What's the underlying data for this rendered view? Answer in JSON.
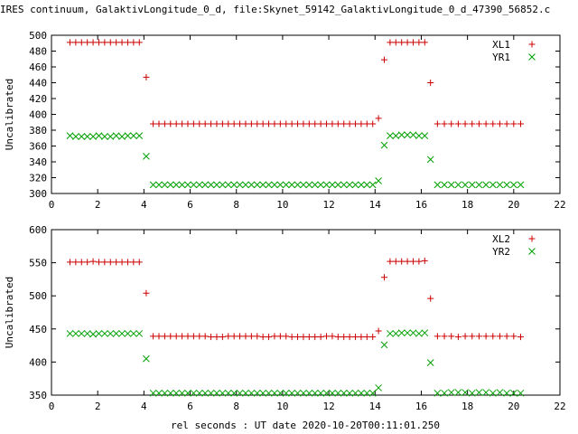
{
  "title": "IRES continuum, GalaktivLongitude_0_d, file:Skynet_59142_GalaktivLongitude_0_d_47390_56852.c",
  "xlabel": "rel seconds : UT date 2020-10-20T00:11:01.250",
  "colors": {
    "red": "#cc0000",
    "green": "#00a000"
  },
  "chart_data": [
    {
      "type": "scatter",
      "ylabel": "Uncalibrated",
      "xlim": [
        0,
        22
      ],
      "ylim": [
        300,
        500
      ],
      "xticks": [
        "0",
        "2",
        "4",
        "6",
        "8",
        "10",
        "12",
        "14",
        "16",
        "18",
        "20",
        "22"
      ],
      "yticks": [
        "300",
        "320",
        "340",
        "360",
        "380",
        "400",
        "420",
        "440",
        "460",
        "480",
        "500"
      ],
      "legend_position": "top-right",
      "series": [
        {
          "name": "XL1",
          "marker": "plus",
          "color": "#cc0000",
          "x": [
            0.8,
            1.05,
            1.3,
            1.55,
            1.8,
            2.05,
            2.3,
            2.55,
            2.8,
            3.05,
            3.3,
            3.55,
            3.8,
            4.1,
            4.4,
            4.65,
            4.9,
            5.15,
            5.4,
            5.65,
            5.9,
            6.15,
            6.4,
            6.65,
            6.9,
            7.15,
            7.4,
            7.65,
            7.9,
            8.15,
            8.4,
            8.65,
            8.9,
            9.15,
            9.4,
            9.65,
            9.9,
            10.15,
            10.4,
            10.65,
            10.9,
            11.15,
            11.4,
            11.65,
            11.9,
            12.15,
            12.4,
            12.65,
            12.9,
            13.15,
            13.4,
            13.65,
            13.9,
            14.15,
            14.4,
            14.65,
            14.9,
            15.15,
            15.4,
            15.65,
            15.9,
            16.15,
            16.4,
            16.7,
            17.0,
            17.3,
            17.6,
            17.9,
            18.2,
            18.5,
            18.8,
            19.1,
            19.4,
            19.7,
            20.0,
            20.3
          ],
          "y": [
            491,
            491,
            491,
            491,
            491,
            491,
            491,
            491,
            491,
            491,
            491,
            491,
            491,
            447,
            388,
            388,
            388,
            388,
            388,
            388,
            388,
            388,
            388,
            388,
            388,
            388,
            388,
            388,
            388,
            388,
            388,
            388,
            388,
            388,
            388,
            388,
            388,
            388,
            388,
            388,
            388,
            388,
            388,
            388,
            388,
            388,
            388,
            388,
            388,
            388,
            388,
            388,
            388,
            395,
            469,
            491,
            491,
            491,
            491,
            491,
            491,
            491,
            440,
            388,
            388,
            388,
            388,
            388,
            388,
            388,
            388,
            388,
            388,
            388,
            388,
            388
          ]
        },
        {
          "name": "YR1",
          "marker": "cross",
          "color": "#00a000",
          "x": [
            0.8,
            1.05,
            1.3,
            1.55,
            1.8,
            2.05,
            2.3,
            2.55,
            2.8,
            3.05,
            3.3,
            3.55,
            3.8,
            4.1,
            4.4,
            4.65,
            4.9,
            5.15,
            5.4,
            5.65,
            5.9,
            6.15,
            6.4,
            6.65,
            6.9,
            7.15,
            7.4,
            7.65,
            7.9,
            8.15,
            8.4,
            8.65,
            8.9,
            9.15,
            9.4,
            9.65,
            9.9,
            10.15,
            10.4,
            10.65,
            10.9,
            11.15,
            11.4,
            11.65,
            11.9,
            12.15,
            12.4,
            12.65,
            12.9,
            13.15,
            13.4,
            13.65,
            13.9,
            14.15,
            14.4,
            14.65,
            14.9,
            15.15,
            15.4,
            15.65,
            15.9,
            16.15,
            16.4,
            16.7,
            17.0,
            17.3,
            17.6,
            17.9,
            18.2,
            18.5,
            18.8,
            19.1,
            19.4,
            19.7,
            20.0,
            20.3
          ],
          "y": [
            373,
            372,
            372,
            372,
            372,
            373,
            372,
            372,
            373,
            372,
            373,
            373,
            373,
            347,
            311,
            311,
            311,
            311,
            311,
            311,
            311,
            311,
            311,
            311,
            311,
            311,
            311,
            311,
            311,
            311,
            311,
            311,
            311,
            311,
            311,
            311,
            311,
            311,
            311,
            311,
            311,
            311,
            311,
            311,
            311,
            311,
            311,
            311,
            311,
            311,
            311,
            311,
            311,
            316,
            361,
            373,
            373,
            374,
            374,
            374,
            373,
            373,
            343,
            311,
            311,
            311,
            311,
            311,
            311,
            311,
            311,
            311,
            311,
            311,
            311,
            311
          ]
        }
      ]
    },
    {
      "type": "scatter",
      "ylabel": "Uncalibrated",
      "xlim": [
        0,
        22
      ],
      "ylim": [
        350,
        600
      ],
      "xticks": [
        "0",
        "2",
        "4",
        "6",
        "8",
        "10",
        "12",
        "14",
        "16",
        "18",
        "20",
        "22"
      ],
      "yticks": [
        "350",
        "400",
        "450",
        "500",
        "550",
        "600"
      ],
      "legend_position": "top-right",
      "series": [
        {
          "name": "XL2",
          "marker": "plus",
          "color": "#cc0000",
          "x": [
            0.8,
            1.05,
            1.3,
            1.55,
            1.8,
            2.05,
            2.3,
            2.55,
            2.8,
            3.05,
            3.3,
            3.55,
            3.8,
            4.1,
            4.4,
            4.65,
            4.9,
            5.15,
            5.4,
            5.65,
            5.9,
            6.15,
            6.4,
            6.65,
            6.9,
            7.15,
            7.4,
            7.65,
            7.9,
            8.15,
            8.4,
            8.65,
            8.9,
            9.15,
            9.4,
            9.65,
            9.9,
            10.15,
            10.4,
            10.65,
            10.9,
            11.15,
            11.4,
            11.65,
            11.9,
            12.15,
            12.4,
            12.65,
            12.9,
            13.15,
            13.4,
            13.65,
            13.9,
            14.15,
            14.4,
            14.65,
            14.9,
            15.15,
            15.4,
            15.65,
            15.9,
            16.15,
            16.4,
            16.7,
            17.0,
            17.3,
            17.6,
            17.9,
            18.2,
            18.5,
            18.8,
            19.1,
            19.4,
            19.7,
            20.0,
            20.3
          ],
          "y": [
            551,
            551,
            551,
            551,
            552,
            551,
            551,
            551,
            551,
            551,
            551,
            551,
            551,
            504,
            439,
            439,
            439,
            439,
            439,
            439,
            439,
            439,
            439,
            439,
            438,
            438,
            438,
            439,
            439,
            439,
            439,
            439,
            439,
            438,
            438,
            439,
            439,
            439,
            438,
            438,
            438,
            438,
            438,
            438,
            439,
            439,
            438,
            438,
            438,
            438,
            438,
            438,
            438,
            447,
            528,
            552,
            552,
            552,
            552,
            552,
            552,
            553,
            496,
            439,
            439,
            439,
            438,
            439,
            439,
            439,
            439,
            439,
            439,
            439,
            439,
            438
          ]
        },
        {
          "name": "YR2",
          "marker": "cross",
          "color": "#00a000",
          "x": [
            0.8,
            1.05,
            1.3,
            1.55,
            1.8,
            2.05,
            2.3,
            2.55,
            2.8,
            3.05,
            3.3,
            3.55,
            3.8,
            4.1,
            4.4,
            4.65,
            4.9,
            5.15,
            5.4,
            5.65,
            5.9,
            6.15,
            6.4,
            6.65,
            6.9,
            7.15,
            7.4,
            7.65,
            7.9,
            8.15,
            8.4,
            8.65,
            8.9,
            9.15,
            9.4,
            9.65,
            9.9,
            10.15,
            10.4,
            10.65,
            10.9,
            11.15,
            11.4,
            11.65,
            11.9,
            12.15,
            12.4,
            12.65,
            12.9,
            13.15,
            13.4,
            13.65,
            13.9,
            14.15,
            14.4,
            14.65,
            14.9,
            15.15,
            15.4,
            15.65,
            15.9,
            16.15,
            16.4,
            16.7,
            17.0,
            17.3,
            17.6,
            17.9,
            18.2,
            18.5,
            18.8,
            19.1,
            19.4,
            19.7,
            20.0,
            20.3
          ],
          "y": [
            443,
            443,
            443,
            443,
            442,
            443,
            443,
            443,
            443,
            443,
            443,
            443,
            443,
            405,
            353,
            353,
            353,
            353,
            353,
            353,
            353,
            353,
            353,
            353,
            353,
            353,
            353,
            353,
            353,
            353,
            353,
            353,
            353,
            353,
            353,
            353,
            353,
            353,
            353,
            353,
            353,
            353,
            353,
            353,
            353,
            353,
            353,
            353,
            353,
            353,
            353,
            353,
            353,
            361,
            426,
            443,
            443,
            444,
            444,
            444,
            443,
            444,
            399,
            353,
            353,
            354,
            354,
            354,
            353,
            354,
            354,
            353,
            354,
            353,
            353,
            353
          ]
        }
      ]
    }
  ]
}
